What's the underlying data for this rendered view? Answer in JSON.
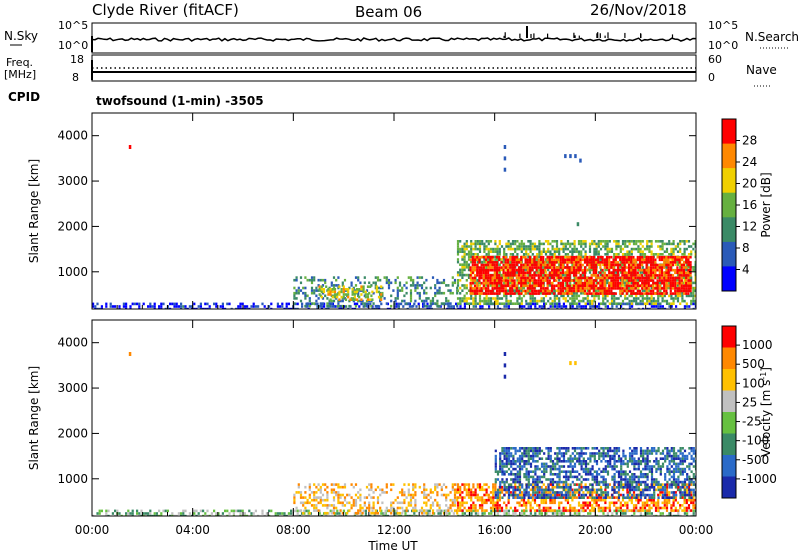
{
  "header": {
    "title": "Clyde River (fitACF)",
    "beam": "Beam 06",
    "date": "26/Nov/2018"
  },
  "top_panels": {
    "nsky_label": "N.Sky",
    "nsky_ticks": [
      "10^5",
      "10^0"
    ],
    "nsearch_label": "N.Search",
    "nsearch_ticks": [
      "10^5",
      "10^0"
    ],
    "freq_label": "Freq.",
    "freq_unit": "[MHz]",
    "freq_ticks": [
      "18",
      "8"
    ],
    "nave_label": "Nave",
    "nave_ticks": [
      "60",
      "0"
    ],
    "cpid_label": "CPID",
    "cpid_text": "twofsound (1-min) -3505"
  },
  "chart_data": [
    {
      "type": "heatmap",
      "name": "power",
      "ylabel": "Slant Range [km]",
      "y_ticks": [
        1000,
        2000,
        3000,
        4000
      ],
      "ylim": [
        180,
        4500
      ],
      "x_ticks": [
        "00:00",
        "04:00",
        "08:00",
        "12:00",
        "16:00",
        "20:00",
        "00:00"
      ],
      "xlim_hours": [
        0,
        24
      ],
      "colorbar": {
        "label": "Power [dB]",
        "ticks": [
          "28",
          "24",
          "20",
          "16",
          "12",
          "8",
          "4"
        ],
        "range": [
          0,
          30
        ],
        "colors": [
          "#0000ff",
          "#2a5ab8",
          "#3a8a66",
          "#66b040",
          "#f0d000",
          "#ff8800",
          "#ff0000"
        ]
      },
      "regions": [
        {
          "t0": 0.0,
          "t1": 24.0,
          "r0": 180,
          "r1": 320,
          "level": 4,
          "density": 0.45
        },
        {
          "t0": 8.0,
          "t1": 14.5,
          "r0": 250,
          "r1": 900,
          "level": 10,
          "density": 0.35
        },
        {
          "t0": 9.0,
          "t1": 11.5,
          "r0": 380,
          "r1": 700,
          "level": 18,
          "density": 0.5
        },
        {
          "t0": 14.5,
          "t1": 24.0,
          "r0": 300,
          "r1": 1700,
          "level": 14,
          "density": 0.6
        },
        {
          "t0": 15.0,
          "t1": 23.8,
          "r0": 500,
          "r1": 1350,
          "level": 28,
          "density": 0.8
        }
      ],
      "points": [
        {
          "t": 1.5,
          "r": 3750,
          "level": 26
        },
        {
          "t": 16.4,
          "r": 3750,
          "level": 6
        },
        {
          "t": 16.4,
          "r": 3500,
          "level": 6
        },
        {
          "t": 16.4,
          "r": 3250,
          "level": 6
        },
        {
          "t": 18.8,
          "r": 3550,
          "level": 5
        },
        {
          "t": 19.0,
          "r": 3550,
          "level": 5
        },
        {
          "t": 19.2,
          "r": 3550,
          "level": 5
        },
        {
          "t": 19.4,
          "r": 3450,
          "level": 5
        },
        {
          "t": 19.3,
          "r": 2050,
          "level": 10
        }
      ]
    },
    {
      "type": "heatmap",
      "name": "velocity",
      "ylabel": "Slant Range [km]",
      "y_ticks": [
        1000,
        2000,
        3000,
        4000
      ],
      "ylim": [
        180,
        4500
      ],
      "x_ticks": [
        "00:00",
        "04:00",
        "08:00",
        "12:00",
        "16:00",
        "20:00",
        "00:00"
      ],
      "xlim_hours": [
        0,
        24
      ],
      "xlabel": "Time UT",
      "colorbar": {
        "label": "Velocity [m s^-1]",
        "ticks": [
          "1000",
          "500",
          "100",
          "25",
          "-25",
          "-100",
          "-500",
          "-1000"
        ],
        "colors": [
          "#1a2aaa",
          "#2a6ac8",
          "#3a8a66",
          "#66c040",
          "#c0c0c0",
          "#ffc000",
          "#ff8800",
          "#ff0000"
        ]
      },
      "regions": [
        {
          "t0": 0.0,
          "t1": 24.0,
          "r0": 180,
          "r1": 320,
          "level": 3,
          "density": 0.5
        },
        {
          "t0": 8.0,
          "t1": 14.5,
          "r0": 250,
          "r1": 900,
          "level": 5,
          "density": 0.4
        },
        {
          "t0": 14.5,
          "t1": 24.0,
          "r0": 300,
          "r1": 900,
          "level": 6,
          "density": 0.55
        },
        {
          "t0": 16.0,
          "t1": 24.0,
          "r0": 600,
          "r1": 1700,
          "level": 1,
          "density": 0.6
        }
      ],
      "points": [
        {
          "t": 1.5,
          "r": 3750,
          "level": 6
        },
        {
          "t": 16.4,
          "r": 3750,
          "level": 0
        },
        {
          "t": 16.4,
          "r": 3500,
          "level": 0
        },
        {
          "t": 16.4,
          "r": 3250,
          "level": 0
        },
        {
          "t": 19.0,
          "r": 3550,
          "level": 5
        },
        {
          "t": 19.2,
          "r": 3550,
          "level": 5
        }
      ]
    }
  ]
}
